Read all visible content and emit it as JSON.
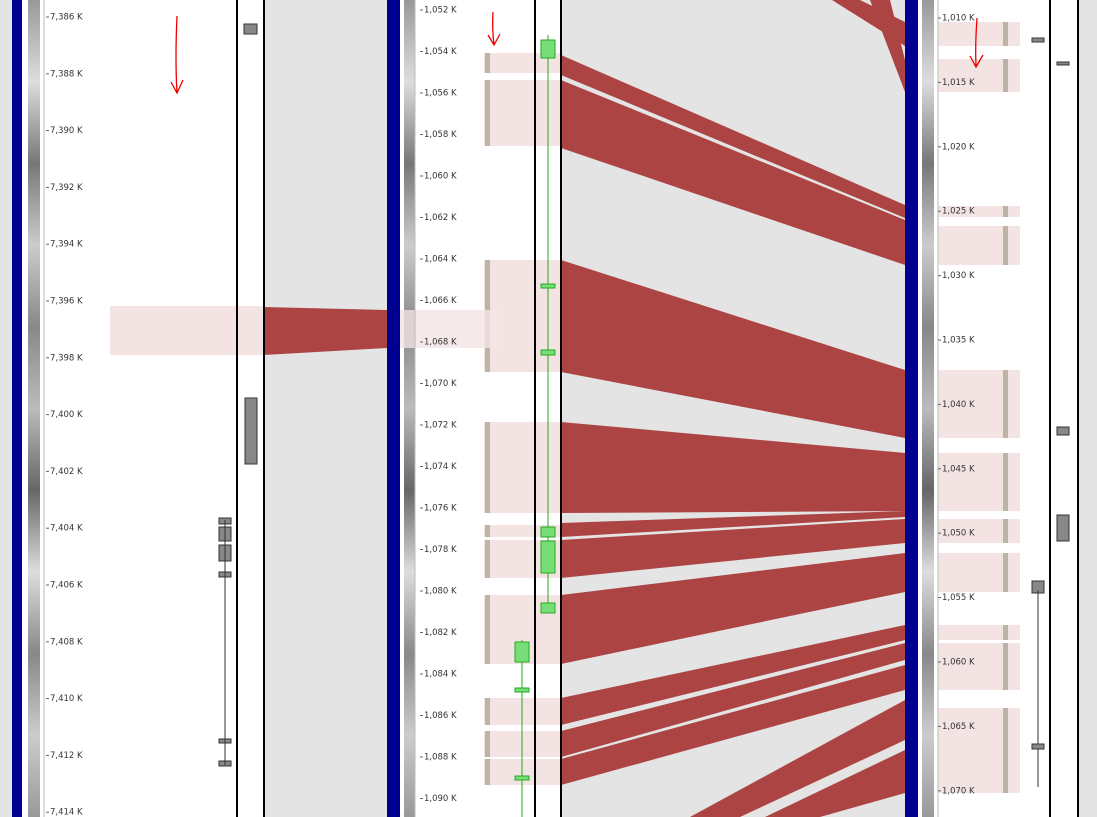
{
  "panels": [
    {
      "ticks": [
        "7,386 K",
        "7,388 K",
        "7,390 K",
        "7,392 K",
        "7,394 K",
        "7,396 K",
        "7,398 K",
        "7,400 K",
        "7,402 K",
        "7,404 K",
        "7,406 K",
        "7,408 K",
        "7,410 K",
        "7,412 K",
        "7,414 K"
      ]
    },
    {
      "ticks": [
        "1,052 K",
        "1,054 K",
        "1,056 K",
        "1,058 K",
        "1,060 K",
        "1,062 K",
        "1,064 K",
        "1,066 K",
        "1,068 K",
        "1,070 K",
        "1,072 K",
        "1,074 K",
        "1,076 K",
        "1,078 K",
        "1,080 K",
        "1,082 K",
        "1,084 K",
        "1,086 K",
        "1,088 K",
        "1,090 K"
      ]
    },
    {
      "ticks": [
        "1,010 K",
        "1,015 K",
        "1,020 K",
        "1,025 K",
        "1,030 K",
        "1,035 K",
        "1,040 K",
        "1,045 K",
        "1,050 K",
        "1,055 K",
        "1,060 K",
        "1,065 K",
        "1,070 K"
      ]
    }
  ]
}
